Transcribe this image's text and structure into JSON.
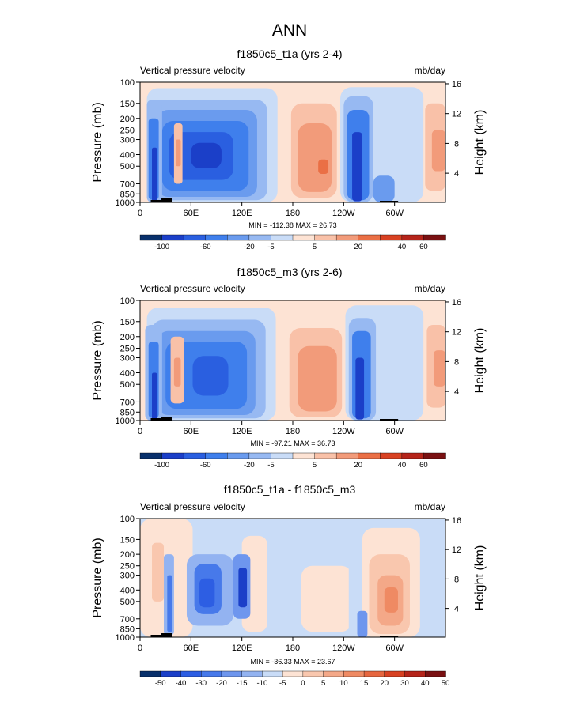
{
  "figure": {
    "title": "ANN"
  },
  "colors": {
    "negative_10": [
      "#08306b",
      "#1b3fc8",
      "#2a5fe0",
      "#3f7fec",
      "#6a9bee",
      "#97b9f2",
      "#c9dcf7"
    ],
    "positive_10": [
      "#fde3d4",
      "#f9c1a8",
      "#f29b7a",
      "#ea6f45",
      "#d84122",
      "#b5241a",
      "#7a1112"
    ],
    "diff_neg": [
      "#08306b",
      "#1b3fc8",
      "#2d5ee3",
      "#4779ea",
      "#6e96ee",
      "#93b3f1",
      "#c9dcf7"
    ],
    "diff_pos": [
      "#ffffff",
      "#fde3d4",
      "#f9c7ae",
      "#f4a888",
      "#ef8a63",
      "#e6663f",
      "#d84122",
      "#b5241a",
      "#7a1112"
    ]
  },
  "chart_data": [
    {
      "type": "heatmap",
      "title": "f1850c5_t1a (yrs 2-4)",
      "left_label": "Vertical pressure velocity",
      "right_label": "mb/day",
      "ylabel": "Pressure (mb)",
      "y2label": "Height (km)",
      "yticks": [
        "100",
        "150",
        "200",
        "250",
        "300",
        "400",
        "500",
        "700",
        "850",
        "1000"
      ],
      "y2ticks": [
        "16",
        "12",
        "8",
        "4"
      ],
      "xticks": [
        "0",
        "60E",
        "120E",
        "180",
        "120W",
        "60W"
      ],
      "stats": "MIN = -112.38   MAX =  26.73",
      "colorbar_labels": [
        "-100",
        "-60",
        "-20",
        "-5",
        "5",
        "20",
        "40",
        "60"
      ],
      "min": -112.38,
      "max": 26.73
    },
    {
      "type": "heatmap",
      "title": "f1850c5_m3 (yrs 2-6)",
      "left_label": "Vertical pressure velocity",
      "right_label": "mb/day",
      "ylabel": "Pressure (mb)",
      "y2label": "Height (km)",
      "yticks": [
        "100",
        "150",
        "200",
        "250",
        "300",
        "400",
        "500",
        "700",
        "850",
        "1000"
      ],
      "y2ticks": [
        "16",
        "12",
        "8",
        "4"
      ],
      "xticks": [
        "0",
        "60E",
        "120E",
        "180",
        "120W",
        "60W"
      ],
      "stats": "MIN = -97.21   MAX =  36.73",
      "colorbar_labels": [
        "-100",
        "-60",
        "-20",
        "-5",
        "5",
        "20",
        "40",
        "60"
      ],
      "min": -97.21,
      "max": 36.73
    },
    {
      "type": "heatmap",
      "title": "f1850c5_t1a - f1850c5_m3",
      "left_label": "Vertical pressure velocity",
      "right_label": "mb/day",
      "ylabel": "Pressure (mb)",
      "y2label": "Height (km)",
      "yticks": [
        "100",
        "150",
        "200",
        "250",
        "300",
        "400",
        "500",
        "700",
        "850",
        "1000"
      ],
      "y2ticks": [
        "16",
        "12",
        "8",
        "4"
      ],
      "xticks": [
        "0",
        "60E",
        "120E",
        "180",
        "120W",
        "60W"
      ],
      "stats": "MIN = -36.33   MAX =  23.67",
      "colorbar_labels": [
        "-50",
        "-40",
        "-30",
        "-20",
        "-15",
        "-10",
        "-5",
        "0",
        "5",
        "10",
        "15",
        "20",
        "30",
        "40",
        "50"
      ],
      "min": -36.33,
      "max": 23.67
    }
  ]
}
